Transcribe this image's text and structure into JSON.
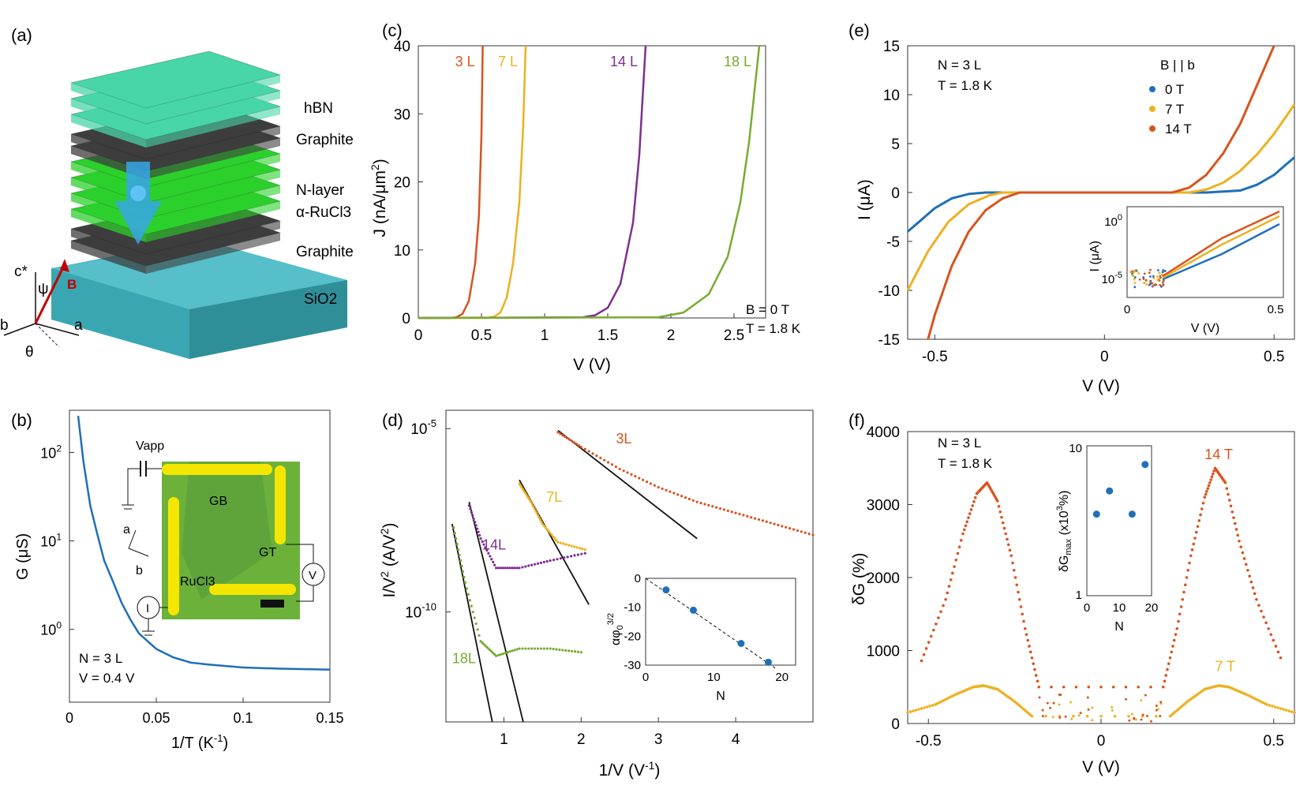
{
  "colors": {
    "blue": "#1f6fb8",
    "orange": "#d9531e",
    "yellow": "#edb120",
    "purple": "#7e2f8e",
    "green": "#77ac30",
    "black": "#111111",
    "teal": "#3aa6b2",
    "hbn": "#48d6a8",
    "ru": "#2cd02c",
    "graphite": "#3d3d3d"
  },
  "panel_a": {
    "label": "(a)",
    "layers": [
      "hBN",
      "Graphite",
      "N-layer",
      "α-RuCl3",
      "Graphite",
      "SiO2"
    ],
    "axes": {
      "c": "c*",
      "psi": "ψ",
      "B": "B",
      "a": "a",
      "b": "b",
      "theta": "θ"
    }
  },
  "panel_b": {
    "label": "(b)",
    "xlabel": "1/T (K-1)",
    "ylabel": "G (μS)",
    "note": [
      "N = 3 L",
      "V = 0.4 V"
    ],
    "inset": {
      "labels": [
        "Vapp",
        "GB",
        "GT",
        "RuCl3",
        "a",
        "b",
        "V",
        "I"
      ]
    }
  },
  "panel_c": {
    "label": "(c)",
    "note": [
      "B = 0 T",
      "T = 1.8 K"
    ]
  },
  "panel_d": {
    "label": "(d)"
  },
  "panel_e": {
    "label": "(e)",
    "note": [
      "N = 3 L",
      "T = 1.8 K"
    ],
    "legend_title": "B | | b"
  },
  "panel_f": {
    "label": "(f)",
    "note": [
      "N = 3 L",
      "T = 1.8 K"
    ]
  },
  "chart_data": [
    {
      "id": "b",
      "type": "line",
      "xlabel": "1/T (K-1)",
      "ylabel": "G (μS)",
      "xlim": [
        0,
        0.15
      ],
      "ylim": [
        0.15,
        300
      ],
      "yscale": "log",
      "xticks": [
        "0",
        "0.05",
        "0.1",
        "0.15"
      ],
      "yticks": [
        "10^0",
        "10^1",
        "10^2"
      ],
      "series": [
        {
          "color": "#1f6fb8",
          "x": [
            0.005,
            0.008,
            0.012,
            0.016,
            0.02,
            0.025,
            0.03,
            0.035,
            0.04,
            0.05,
            0.06,
            0.07,
            0.08,
            0.1,
            0.12,
            0.15
          ],
          "y": [
            260,
            80,
            25,
            12,
            6,
            3.5,
            2,
            1.3,
            0.9,
            0.6,
            0.48,
            0.42,
            0.4,
            0.37,
            0.36,
            0.35
          ]
        }
      ]
    },
    {
      "id": "c",
      "type": "line",
      "xlabel": "V (V)",
      "ylabel": "J (nA/μm2)",
      "xlim": [
        0,
        2.75
      ],
      "ylim": [
        0,
        40
      ],
      "xticks": [
        "0",
        "0.5",
        "1",
        "1.5",
        "2",
        "2.5"
      ],
      "yticks": [
        "0",
        "10",
        "20",
        "30",
        "40"
      ],
      "series": [
        {
          "name": "3 L",
          "color": "#d9531e",
          "x": [
            0,
            0.25,
            0.3,
            0.35,
            0.4,
            0.45,
            0.48,
            0.5,
            0.51
          ],
          "y": [
            0,
            0,
            0.1,
            0.6,
            2.5,
            8,
            15,
            27,
            40
          ]
        },
        {
          "name": "7 L",
          "color": "#edb120",
          "x": [
            0,
            0.55,
            0.6,
            0.65,
            0.7,
            0.75,
            0.8,
            0.83,
            0.85
          ],
          "y": [
            0,
            0,
            0.2,
            0.8,
            3,
            8,
            17,
            28,
            40
          ]
        },
        {
          "name": "14 L",
          "color": "#7e2f8e",
          "x": [
            0,
            1.3,
            1.4,
            1.5,
            1.6,
            1.7,
            1.75,
            1.8
          ],
          "y": [
            0,
            0.1,
            0.4,
            1.5,
            5,
            14,
            24,
            40
          ]
        },
        {
          "name": "18 L",
          "color": "#77ac30",
          "x": [
            0,
            1.9,
            2.1,
            2.3,
            2.45,
            2.55,
            2.62,
            2.7
          ],
          "y": [
            0,
            0.1,
            0.8,
            3.5,
            9,
            17,
            26,
            40
          ]
        }
      ]
    },
    {
      "id": "d",
      "type": "scatter",
      "xlabel": "1/V (V-1)",
      "ylabel": "I/V2 (A/V2)",
      "xlim": [
        0.25,
        5
      ],
      "ylim": [
        -13,
        -4.5
      ],
      "yscale": "log",
      "xticks": [
        "1",
        "2",
        "3",
        "4"
      ],
      "yticks": [
        "10-5",
        "10-10"
      ],
      "series": [
        {
          "name": "3L",
          "color": "#d9531e",
          "x": [
            1.7,
            2,
            2.5,
            3,
            3.5,
            4,
            4.5,
            5
          ],
          "y": [
            -5.1,
            -5.5,
            -6.1,
            -6.6,
            -7,
            -7.3,
            -7.6,
            -7.9
          ]
        },
        {
          "name": "7L",
          "color": "#edb120",
          "x": [
            1.2,
            1.35,
            1.5,
            1.7,
            2.05
          ],
          "y": [
            -6.5,
            -7,
            -7.6,
            -8.1,
            -8.3
          ]
        },
        {
          "name": "14L",
          "color": "#7e2f8e",
          "x": [
            0.55,
            0.7,
            0.9,
            1.2,
            1.6,
            2.05
          ],
          "y": [
            -7.1,
            -8,
            -8.8,
            -8.8,
            -8.6,
            -8.4
          ]
        },
        {
          "name": "18L",
          "color": "#77ac30",
          "x": [
            0.35,
            0.5,
            0.7,
            0.9,
            1.2,
            1.6,
            2
          ],
          "y": [
            -7.7,
            -9.2,
            -10.8,
            -11.2,
            -11,
            -11,
            -11.1
          ]
        }
      ],
      "inset": {
        "xlabel": "N",
        "ylabel": "αφ03/2",
        "xticks": [
          "0",
          "10",
          "20"
        ],
        "yticks": [
          "0",
          "-10",
          "-20",
          "-30"
        ],
        "x": [
          3,
          7,
          14,
          18
        ],
        "y": [
          -4,
          -11,
          -22.5,
          -29
        ]
      }
    },
    {
      "id": "e",
      "type": "line",
      "xlabel": "V (V)",
      "ylabel": "I (μA)",
      "xlim": [
        -0.58,
        0.56
      ],
      "ylim": [
        -15,
        15
      ],
      "xticks": [
        "-0.5",
        "0",
        "0.5"
      ],
      "yticks": [
        "-15",
        "-10",
        "-5",
        "0",
        "5",
        "10",
        "15"
      ],
      "series": [
        {
          "name": "0 T",
          "color": "#1f6fb8",
          "x": [
            -0.58,
            -0.5,
            -0.45,
            -0.4,
            -0.35,
            0.3,
            0.4,
            0.45,
            0.5,
            0.56
          ],
          "y": [
            -4,
            -1.6,
            -0.6,
            -0.15,
            0,
            0,
            0.2,
            0.8,
            1.8,
            3.6
          ]
        },
        {
          "name": "7 T",
          "color": "#edb120",
          "x": [
            -0.58,
            -0.52,
            -0.46,
            -0.4,
            -0.34,
            -0.3,
            0.25,
            0.3,
            0.35,
            0.4,
            0.45,
            0.5,
            0.56
          ],
          "y": [
            -10,
            -6,
            -3,
            -1.2,
            -0.3,
            0,
            0,
            0.3,
            1,
            2.2,
            3.9,
            6,
            9
          ]
        },
        {
          "name": "14 T",
          "color": "#d9531e",
          "x": [
            -0.52,
            -0.5,
            -0.45,
            -0.4,
            -0.35,
            -0.3,
            -0.25,
            0.2,
            0.25,
            0.3,
            0.35,
            0.4,
            0.45,
            0.5
          ],
          "y": [
            -15,
            -12.5,
            -7.5,
            -4,
            -1.8,
            -0.6,
            0,
            0,
            0.5,
            1.8,
            4,
            7,
            11,
            15
          ]
        }
      ],
      "inset": {
        "xlabel": "V (V)",
        "ylabel": "I (μA)",
        "xticks": [
          "0",
          "0.5"
        ],
        "yticks": [
          "10^0",
          "10^-5"
        ]
      }
    },
    {
      "id": "f",
      "type": "scatter",
      "xlabel": "V (V)",
      "ylabel": "δG (%)",
      "xlim": [
        -0.56,
        0.56
      ],
      "ylim": [
        0,
        4000
      ],
      "xticks": [
        "-0.5",
        "0",
        "0.5"
      ],
      "yticks": [
        "0",
        "1000",
        "2000",
        "3000",
        "4000"
      ],
      "series": [
        {
          "name": "14 T",
          "color": "#d9531e",
          "x": [
            -0.52,
            -0.45,
            -0.4,
            -0.36,
            -0.33,
            -0.3,
            -0.26,
            -0.22,
            -0.18,
            0.18,
            0.22,
            0.26,
            0.3,
            0.33,
            0.36,
            0.4,
            0.45,
            0.52
          ],
          "y": [
            860,
            1700,
            2600,
            3150,
            3300,
            3050,
            2300,
            1300,
            500,
            500,
            1300,
            2300,
            3100,
            3500,
            3300,
            2500,
            1700,
            900
          ]
        },
        {
          "name": "7 T",
          "color": "#edb120",
          "x": [
            -0.56,
            -0.48,
            -0.42,
            -0.37,
            -0.34,
            -0.3,
            -0.25,
            -0.2,
            0.2,
            0.25,
            0.3,
            0.34,
            0.37,
            0.42,
            0.48,
            0.56
          ],
          "y": [
            150,
            260,
            400,
            500,
            520,
            470,
            300,
            100,
            100,
            300,
            470,
            520,
            500,
            400,
            260,
            150
          ]
        }
      ],
      "inset": {
        "xlabel": "N",
        "ylabel": "δGmax (x103%)",
        "xticks": [
          "0",
          "10",
          "20"
        ],
        "yticks": [
          "1",
          "10"
        ],
        "x": [
          3,
          7,
          14,
          18
        ],
        "y": [
          3.5,
          5,
          3.5,
          7.5
        ]
      }
    }
  ]
}
